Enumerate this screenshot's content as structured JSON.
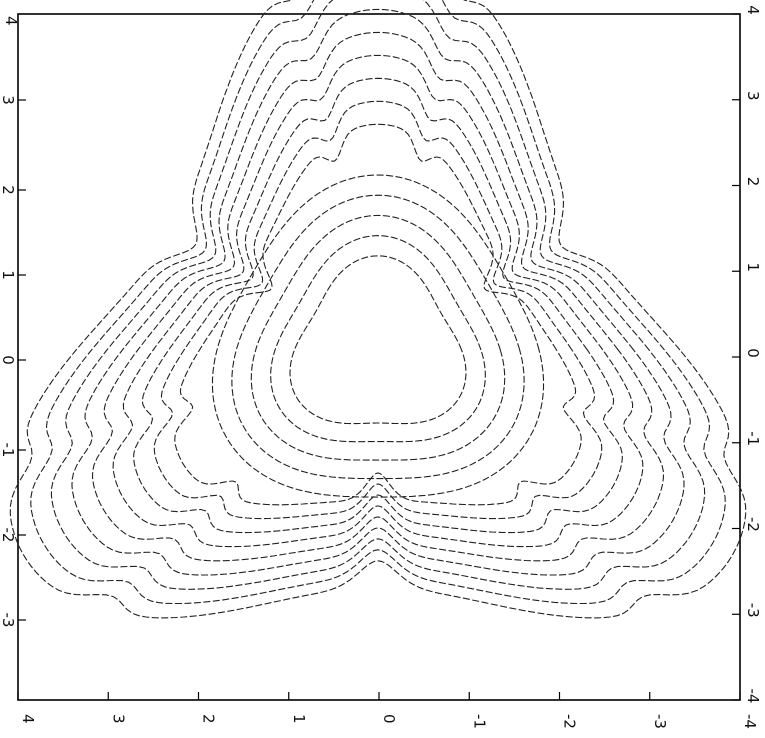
{
  "chart_data": {
    "type": "contour",
    "title": "",
    "xlabel": "",
    "ylabel": "",
    "orientation": "figure rotated 90 degrees clockwise",
    "xlim": [
      -4,
      4
    ],
    "ylim": [
      -4,
      4
    ],
    "grid": false,
    "legend": "none",
    "line_style": "dashed",
    "line_color": "#222222",
    "symmetry": "threefold",
    "lobe_directions_deg": [
      90,
      210,
      330
    ],
    "num_outer_contours": 9,
    "num_inner_contours": 5,
    "bottom_axis_tick_labels": [
      "4",
      "3",
      "2",
      "1",
      "0",
      "-1",
      "-2",
      "-3",
      "-4"
    ],
    "right_axis_tick_labels": [
      "4",
      "3",
      "2",
      "1",
      "0",
      "-1",
      "-2",
      "-3",
      "-4"
    ],
    "left_axis_edge_label": "4",
    "left_axis_tick_labels": [
      "3",
      "2",
      "1",
      "0",
      "-1",
      "-2",
      "-3"
    ]
  }
}
